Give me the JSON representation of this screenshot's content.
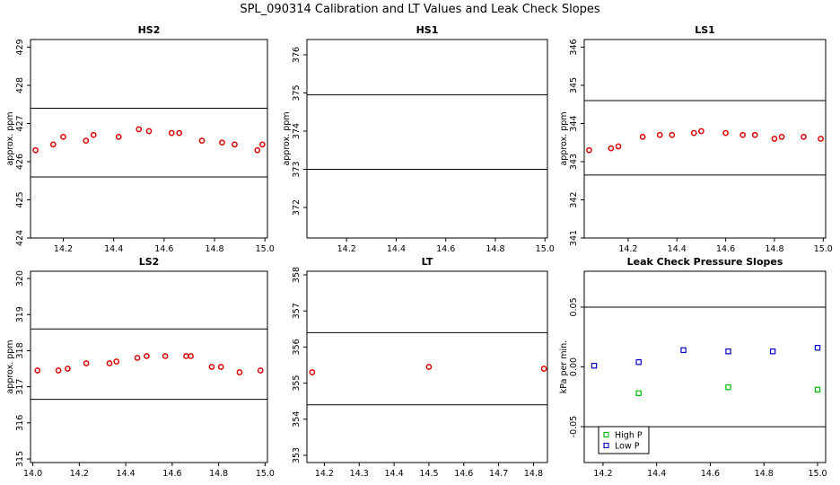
{
  "title": "SPL_090314  Calibration and LT Values and Leak Check Slopes",
  "colors": {
    "red": "#dd0000",
    "green": "#00bb00",
    "blue": "#0000cc"
  },
  "chart_data": [
    {
      "type": "scatter",
      "title": "HS2",
      "ylabel": "approx. ppm",
      "xlim": [
        14.07,
        15.01
      ],
      "ylim": [
        424,
        429.2
      ],
      "xticks": [
        "14.2",
        "14.4",
        "14.6",
        "14.8",
        "15.0"
      ],
      "xtick_values": [
        14.2,
        14.4,
        14.6,
        14.8,
        15.0
      ],
      "yticks": [
        "424",
        "425",
        "426",
        "427",
        "428",
        "429"
      ],
      "ytick_values": [
        424,
        425,
        426,
        427,
        428,
        429
      ],
      "hlines": [
        427.4,
        425.6
      ],
      "series": [
        {
          "marker": "circle",
          "color": "#dd0000",
          "points": [
            [
              14.09,
              426.3
            ],
            [
              14.16,
              426.45
            ],
            [
              14.2,
              426.65
            ],
            [
              14.29,
              426.55
            ],
            [
              14.32,
              426.7
            ],
            [
              14.42,
              426.65
            ],
            [
              14.5,
              426.85
            ],
            [
              14.54,
              426.8
            ],
            [
              14.63,
              426.75
            ],
            [
              14.66,
              426.75
            ],
            [
              14.75,
              426.55
            ],
            [
              14.83,
              426.5
            ],
            [
              14.88,
              426.45
            ],
            [
              14.97,
              426.3
            ],
            [
              14.99,
              426.45
            ]
          ]
        }
      ]
    },
    {
      "type": "scatter",
      "title": "HS1",
      "ylabel": "approx. ppm",
      "xlim": [
        14.04,
        15.01
      ],
      "ylim": [
        371.2,
        376.4
      ],
      "xticks": [
        "14.2",
        "14.4",
        "14.6",
        "14.8",
        "15.0"
      ],
      "xtick_values": [
        14.2,
        14.4,
        14.6,
        14.8,
        15.0
      ],
      "yticks": [
        "372",
        "373",
        "374",
        "375",
        "376"
      ],
      "ytick_values": [
        372,
        373,
        374,
        375,
        376
      ],
      "hlines": [
        374.95,
        373.0
      ],
      "series": []
    },
    {
      "type": "scatter",
      "title": "LS1",
      "ylabel": "approx. ppm",
      "xlim": [
        14.02,
        15.01
      ],
      "ylim": [
        341,
        346.2
      ],
      "xticks": [
        "14.2",
        "14.4",
        "14.6",
        "14.8",
        "15.0"
      ],
      "xtick_values": [
        14.2,
        14.4,
        14.6,
        14.8,
        15.0
      ],
      "yticks": [
        "341",
        "342",
        "343",
        "344",
        "345",
        "346"
      ],
      "ytick_values": [
        341,
        342,
        343,
        344,
        345,
        346
      ],
      "hlines": [
        344.6,
        342.65
      ],
      "series": [
        {
          "marker": "circle",
          "color": "#dd0000",
          "points": [
            [
              14.04,
              343.3
            ],
            [
              14.13,
              343.35
            ],
            [
              14.16,
              343.4
            ],
            [
              14.26,
              343.65
            ],
            [
              14.33,
              343.7
            ],
            [
              14.38,
              343.7
            ],
            [
              14.47,
              343.75
            ],
            [
              14.5,
              343.8
            ],
            [
              14.6,
              343.75
            ],
            [
              14.67,
              343.7
            ],
            [
              14.72,
              343.7
            ],
            [
              14.8,
              343.6
            ],
            [
              14.83,
              343.65
            ],
            [
              14.92,
              343.65
            ],
            [
              14.99,
              343.6
            ]
          ]
        }
      ]
    },
    {
      "type": "scatter",
      "title": "LS2",
      "ylabel": "approx. ppm",
      "xlim": [
        13.99,
        15.01
      ],
      "ylim": [
        314.9,
        320.2
      ],
      "xticks": [
        "14.0",
        "14.2",
        "14.4",
        "14.6",
        "14.8",
        "15.0"
      ],
      "xtick_values": [
        14.0,
        14.2,
        14.4,
        14.6,
        14.8,
        15.0
      ],
      "yticks": [
        "315",
        "316",
        "317",
        "318",
        "319",
        "320"
      ],
      "ytick_values": [
        315,
        316,
        317,
        318,
        319,
        320
      ],
      "hlines": [
        318.6,
        316.65
      ],
      "series": [
        {
          "marker": "circle",
          "color": "#dd0000",
          "points": [
            [
              14.02,
              317.45
            ],
            [
              14.11,
              317.45
            ],
            [
              14.15,
              317.5
            ],
            [
              14.23,
              317.65
            ],
            [
              14.33,
              317.65
            ],
            [
              14.36,
              317.7
            ],
            [
              14.45,
              317.8
            ],
            [
              14.49,
              317.85
            ],
            [
              14.57,
              317.85
            ],
            [
              14.66,
              317.85
            ],
            [
              14.68,
              317.85
            ],
            [
              14.77,
              317.55
            ],
            [
              14.81,
              317.55
            ],
            [
              14.89,
              317.4
            ],
            [
              14.98,
              317.45
            ]
          ]
        }
      ]
    },
    {
      "type": "scatter",
      "title": "LT",
      "ylabel": "",
      "xlim": [
        14.15,
        14.84
      ],
      "ylim": [
        352.8,
        358.1
      ],
      "xticks": [
        "14.2",
        "14.3",
        "14.4",
        "14.5",
        "14.6",
        "14.7",
        "14.8"
      ],
      "xtick_values": [
        14.2,
        14.3,
        14.4,
        14.5,
        14.6,
        14.7,
        14.8
      ],
      "yticks": [
        "353",
        "354",
        "355",
        "356",
        "357",
        "358"
      ],
      "ytick_values": [
        353,
        354,
        355,
        356,
        357,
        358
      ],
      "hlines": [
        356.4,
        354.4
      ],
      "series": [
        {
          "marker": "circle",
          "color": "#dd0000",
          "points": [
            [
              14.165,
              355.3
            ],
            [
              14.5,
              355.45
            ],
            [
              14.83,
              355.4
            ]
          ]
        }
      ]
    },
    {
      "type": "scatter",
      "title": "Leak Check Pressure Slopes",
      "ylabel": "kPa per min.",
      "xlim": [
        14.13,
        15.03
      ],
      "ylim": [
        -0.08,
        0.08
      ],
      "xticks": [
        "14.2",
        "14.4",
        "14.6",
        "14.8",
        "15.0"
      ],
      "xtick_values": [
        14.2,
        14.4,
        14.6,
        14.8,
        15.0
      ],
      "yticks": [
        "-0.05",
        "0.00",
        "0.05"
      ],
      "ytick_values": [
        -0.05,
        0.0,
        0.05
      ],
      "hlines": [
        0.05,
        -0.05
      ],
      "legend": {
        "position": "bottom-left",
        "entries": [
          "High P",
          "Low P"
        ]
      },
      "series": [
        {
          "name": "High P",
          "marker": "square",
          "color": "#00bb00",
          "points": [
            [
              14.333,
              -0.022
            ],
            [
              14.667,
              -0.017
            ],
            [
              15.0,
              -0.019
            ]
          ]
        },
        {
          "name": "Low P",
          "marker": "square",
          "color": "#0000cc",
          "points": [
            [
              14.167,
              0.001
            ],
            [
              14.333,
              0.004
            ],
            [
              14.5,
              0.014
            ],
            [
              14.667,
              0.013
            ],
            [
              14.833,
              0.013
            ],
            [
              15.0,
              0.016
            ]
          ]
        }
      ]
    }
  ]
}
